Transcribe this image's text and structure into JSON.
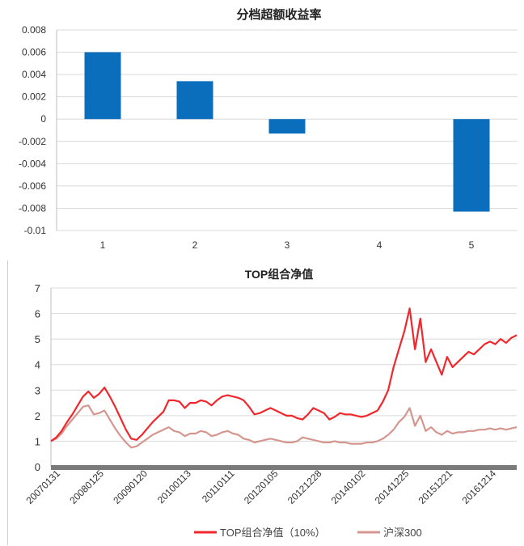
{
  "chart_data": [
    {
      "type": "bar",
      "title": "分档超额收益率",
      "categories": [
        "1",
        "2",
        "3",
        "4",
        "5"
      ],
      "values": [
        0.006,
        0.0034,
        -0.0013,
        0.0,
        -0.0083
      ],
      "ylim": [
        -0.01,
        0.008
      ],
      "yticks": [
        "0.008",
        "0.006",
        "0.004",
        "0.002",
        "0",
        "-0.002",
        "-0.004",
        "-0.006",
        "-0.008",
        "-0.01"
      ],
      "xlabel": "",
      "ylabel": "",
      "grid": true,
      "color": "#0a6ebd"
    },
    {
      "type": "line",
      "title": "TOP组合净值",
      "xlabel": "",
      "ylabel": "",
      "ylim": [
        0,
        7
      ],
      "yticks": [
        "0",
        "1",
        "2",
        "3",
        "4",
        "5",
        "6",
        "7"
      ],
      "xticks": [
        "20070131",
        "20080125",
        "20090120",
        "20100113",
        "20110111",
        "20120105",
        "20121228",
        "20140102",
        "20141225",
        "20151221",
        "20161214"
      ],
      "grid": true,
      "legend_position": "bottom",
      "series": [
        {
          "name": "TOP组合净值（10%）",
          "color": "#f0282d",
          "values": [
            1.0,
            1.15,
            1.4,
            1.75,
            2.05,
            2.4,
            2.75,
            2.95,
            2.7,
            2.85,
            3.1,
            2.75,
            2.35,
            1.9,
            1.45,
            1.1,
            1.05,
            1.25,
            1.5,
            1.75,
            1.95,
            2.15,
            2.6,
            2.6,
            2.55,
            2.3,
            2.5,
            2.5,
            2.6,
            2.55,
            2.4,
            2.6,
            2.75,
            2.8,
            2.75,
            2.7,
            2.6,
            2.35,
            2.05,
            2.1,
            2.2,
            2.3,
            2.2,
            2.1,
            2.0,
            2.0,
            1.9,
            1.85,
            2.05,
            2.3,
            2.2,
            2.1,
            1.85,
            1.95,
            2.1,
            2.05,
            2.05,
            2.0,
            1.95,
            2.0,
            2.1,
            2.2,
            2.55,
            3.0,
            3.9,
            4.6,
            5.3,
            6.2,
            4.6,
            5.8,
            4.1,
            4.6,
            4.1,
            3.6,
            4.3,
            3.9,
            4.1,
            4.3,
            4.5,
            4.4,
            4.6,
            4.8,
            4.9,
            4.8,
            5.0,
            4.85,
            5.05,
            5.15
          ]
        },
        {
          "name": "沪深300",
          "color": "#d4978f",
          "values": [
            1.0,
            1.1,
            1.3,
            1.6,
            1.85,
            2.1,
            2.35,
            2.4,
            2.05,
            2.1,
            2.2,
            1.85,
            1.5,
            1.2,
            0.95,
            0.75,
            0.8,
            0.95,
            1.1,
            1.25,
            1.35,
            1.45,
            1.55,
            1.4,
            1.35,
            1.2,
            1.3,
            1.3,
            1.4,
            1.35,
            1.2,
            1.25,
            1.35,
            1.4,
            1.3,
            1.25,
            1.1,
            1.05,
            0.95,
            1.0,
            1.05,
            1.1,
            1.05,
            1.0,
            0.95,
            0.95,
            1.0,
            1.15,
            1.1,
            1.05,
            1.0,
            0.95,
            0.95,
            1.0,
            0.95,
            0.95,
            0.9,
            0.9,
            0.9,
            0.95,
            0.95,
            1.0,
            1.1,
            1.25,
            1.45,
            1.75,
            1.95,
            2.3,
            1.6,
            2.0,
            1.4,
            1.55,
            1.35,
            1.25,
            1.4,
            1.3,
            1.35,
            1.35,
            1.4,
            1.4,
            1.45,
            1.45,
            1.5,
            1.45,
            1.5,
            1.45,
            1.5,
            1.55
          ]
        }
      ]
    }
  ]
}
